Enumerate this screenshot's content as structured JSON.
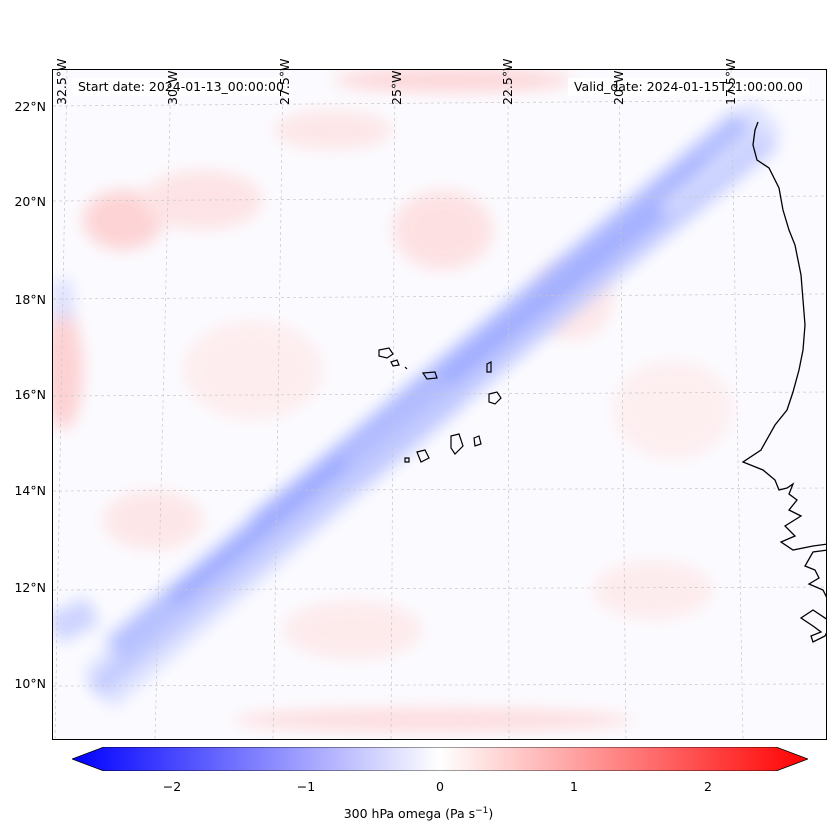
{
  "header": {
    "start_date": "Start date: 2024-01-13_00:00:00",
    "valid_date": "Valid_date: 2024-01-15T21:00:00.00"
  },
  "axes": {
    "lat_labels": [
      "22°N",
      "20°N",
      "18°N",
      "16°N",
      "14°N",
      "12°N",
      "10°N"
    ],
    "lon_labels": [
      "32.5°W",
      "30°W",
      "27.5°W",
      "25°W",
      "22.5°W",
      "20°W",
      "17.5°W"
    ]
  },
  "colorbar": {
    "ticks": [
      "−2",
      "−1",
      "0",
      "1",
      "2"
    ],
    "label": "300 hPa omega (Pa s",
    "label_sup": "−1",
    "label_end": ")",
    "range": [
      -2.5,
      2.5
    ],
    "low_color": "#0000ff",
    "mid_color": "#ffffff",
    "high_color": "#ff0000"
  },
  "map": {
    "extent": {
      "lon": [
        -33.0,
        -15.5
      ],
      "lat": [
        8.8,
        22.7
      ]
    },
    "field": "300 hPa omega",
    "coast_color": "#000000"
  }
}
